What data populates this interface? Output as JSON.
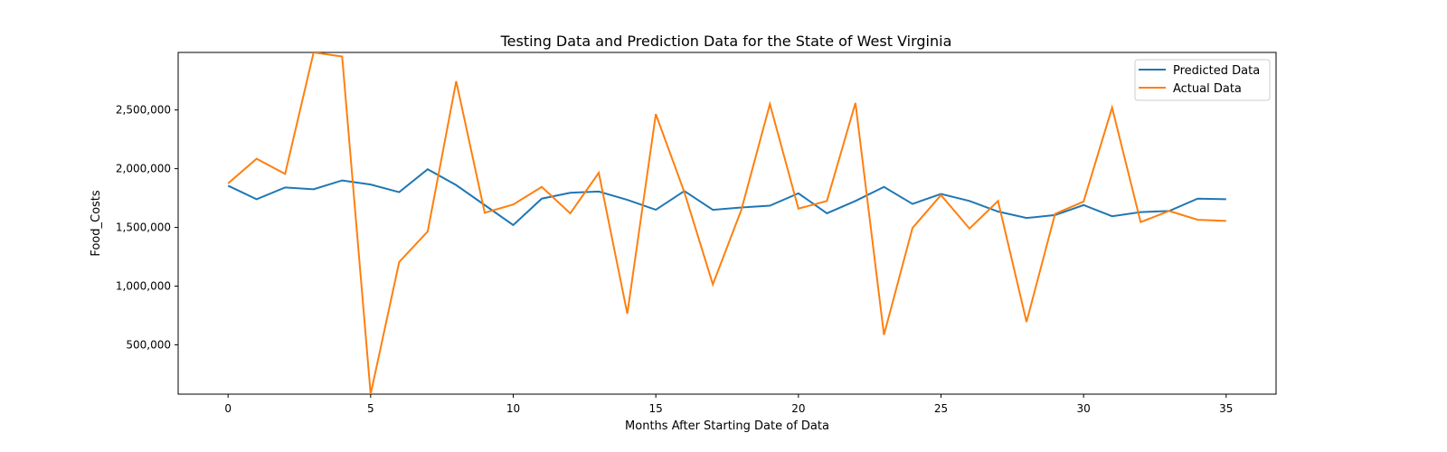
{
  "chart_data": {
    "type": "line",
    "title": "Testing Data and Prediction Data for the State of West Virginia",
    "xlabel": "Months After Starting Date of Data",
    "ylabel": "Food_Costs",
    "xlim": [
      -1.75,
      36.75
    ],
    "ylim": [
      80000,
      2990000
    ],
    "x_ticks": [
      0,
      5,
      10,
      15,
      20,
      25,
      30,
      35
    ],
    "x_tick_labels": [
      "0",
      "5",
      "10",
      "15",
      "20",
      "25",
      "30",
      "35"
    ],
    "y_ticks": [
      500000,
      1000000,
      1500000,
      2000000,
      2500000
    ],
    "y_tick_labels": [
      "500,000",
      "1,000,000",
      "1,500,000",
      "2,000,000",
      "2,500,000"
    ],
    "grid": false,
    "legend_position": "upper right",
    "x": [
      0,
      1,
      2,
      3,
      4,
      5,
      6,
      7,
      8,
      9,
      10,
      11,
      12,
      13,
      14,
      15,
      16,
      17,
      18,
      19,
      20,
      21,
      22,
      23,
      24,
      25,
      26,
      27,
      28,
      29,
      30,
      31,
      32,
      33,
      34,
      35
    ],
    "series": [
      {
        "name": "Predicted Data",
        "color": "#1f77b4",
        "values": [
          1855000,
          1740000,
          1840000,
          1825000,
          1900000,
          1865000,
          1800000,
          1995000,
          1860000,
          1690000,
          1520000,
          1745000,
          1795000,
          1805000,
          1735000,
          1650000,
          1810000,
          1650000,
          1670000,
          1685000,
          1790000,
          1620000,
          1725000,
          1845000,
          1700000,
          1785000,
          1725000,
          1635000,
          1580000,
          1605000,
          1690000,
          1595000,
          1630000,
          1640000,
          1745000,
          1740000
        ]
      },
      {
        "name": "Actual Data",
        "color": "#ff7f0e",
        "values": [
          1875000,
          2085000,
          1955000,
          2990000,
          2955000,
          80000,
          1205000,
          1465000,
          2745000,
          1625000,
          1695000,
          1845000,
          1620000,
          1965000,
          765000,
          2465000,
          1800000,
          1015000,
          1650000,
          2550000,
          1660000,
          1725000,
          2560000,
          585000,
          1495000,
          1775000,
          1490000,
          1725000,
          695000,
          1615000,
          1720000,
          2520000,
          1545000,
          1640000,
          1565000,
          1555000
        ]
      }
    ]
  }
}
